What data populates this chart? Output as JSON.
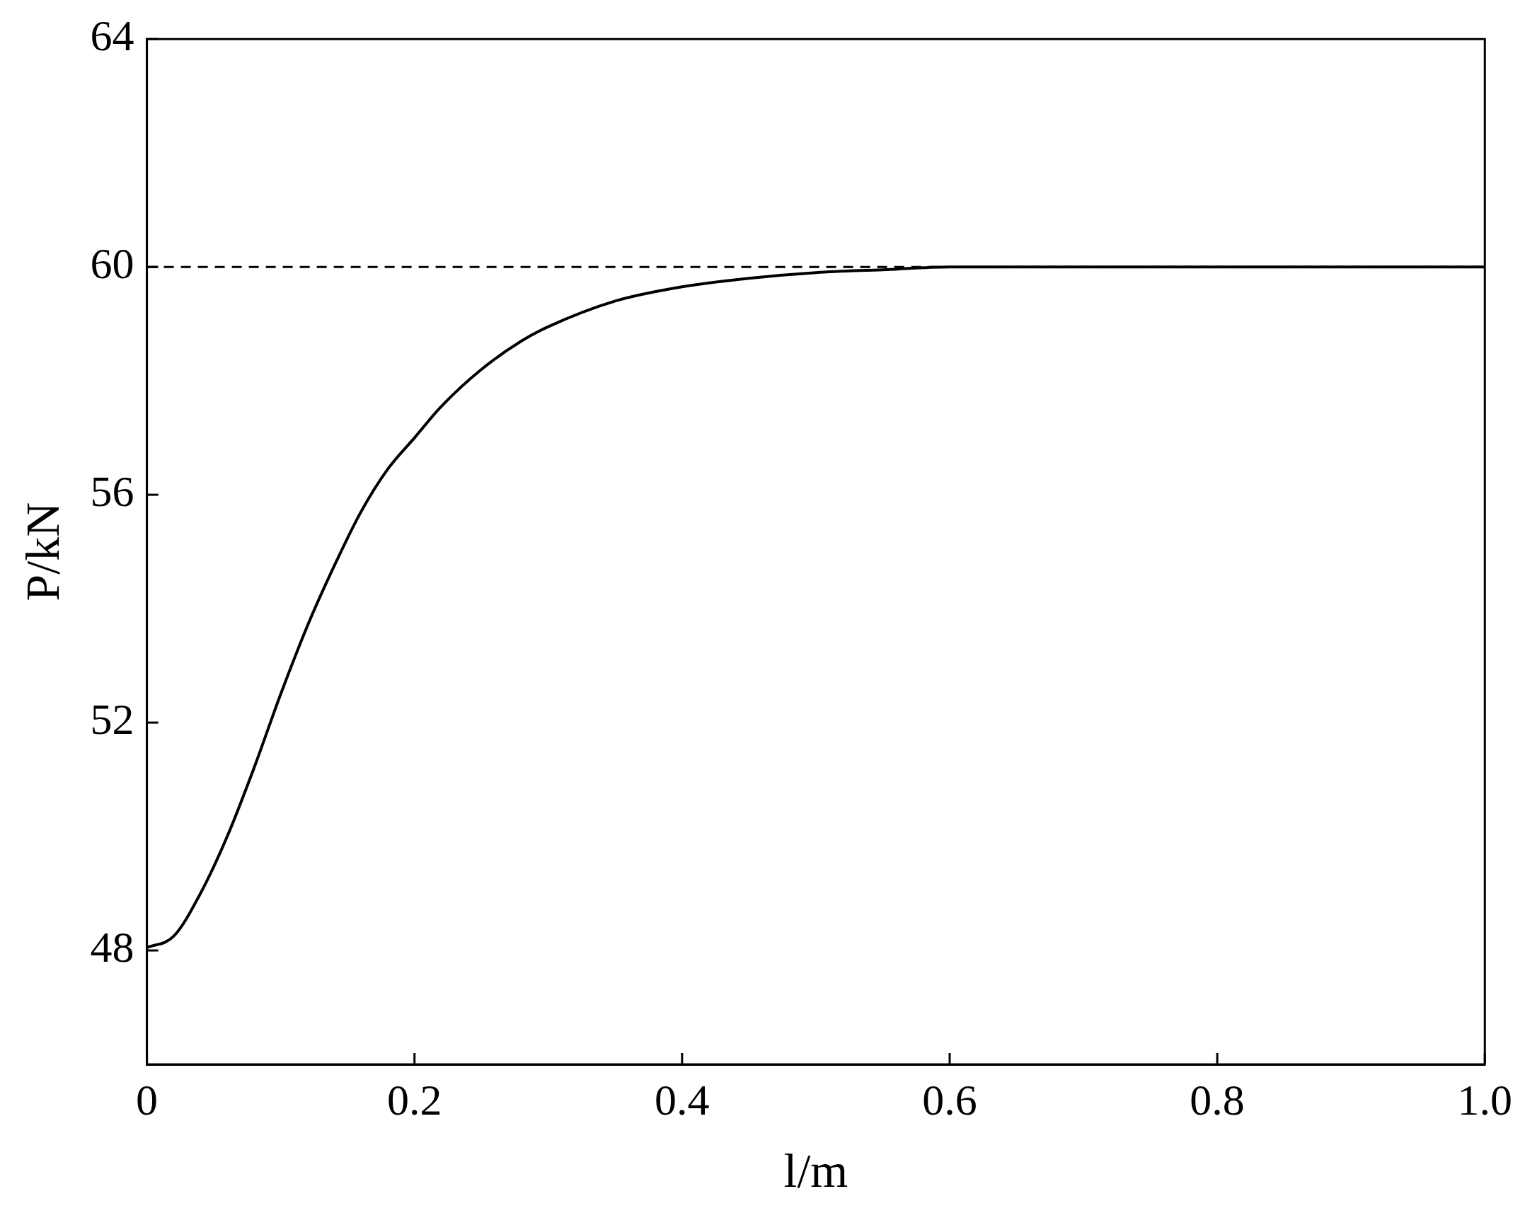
{
  "chart_data": {
    "type": "line",
    "xlabel": "l/m",
    "ylabel": "P/kN",
    "xlim": [
      0,
      1
    ],
    "xticks": [
      0,
      0.2,
      0.4,
      0.6,
      0.8,
      {
        "value": 1,
        "label": "1.0"
      }
    ],
    "ylim": [
      46,
      64
    ],
    "yticks": [
      48,
      52,
      56,
      60,
      64
    ],
    "grid": false,
    "legend": false,
    "marker": "none",
    "line_style": "solid",
    "ref_lines": [
      {
        "axis": "y",
        "value": 60,
        "color": "#000000",
        "line_style": "dashed"
      }
    ],
    "series": [
      {
        "color": "#000000",
        "x": [
          0,
          0.02,
          0.04,
          0.06,
          0.08,
          0.1,
          0.12,
          0.14,
          0.16,
          0.18,
          0.2,
          0.22,
          0.25,
          0.28,
          0.3,
          0.35,
          0.4,
          0.45,
          0.5,
          0.55,
          0.6,
          0.7,
          0.8,
          0.9,
          1.0
        ],
        "values": [
          48.05,
          48.25,
          49.0,
          50.0,
          51.2,
          52.5,
          53.7,
          54.75,
          55.7,
          56.45,
          57.0,
          57.55,
          58.2,
          58.7,
          58.95,
          59.4,
          59.65,
          59.8,
          59.9,
          59.95,
          60.0,
          60.0,
          60.0,
          60.0,
          60.0
        ]
      }
    ]
  }
}
